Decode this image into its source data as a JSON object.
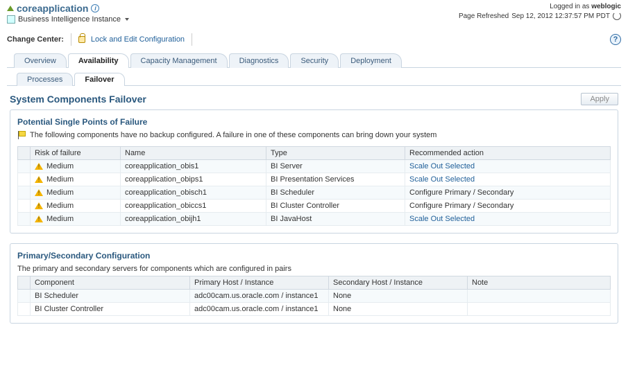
{
  "header": {
    "title": "coreapplication",
    "subtitle": "Business Intelligence Instance",
    "logged_in_prefix": "Logged in as ",
    "logged_in_user": "weblogic",
    "refresh_prefix": "Page Refreshed ",
    "refresh_time": "Sep 12, 2012 12:37:57 PM PDT"
  },
  "change_center": {
    "label": "Change Center:",
    "lock_link": "Lock and Edit Configuration"
  },
  "tabs": {
    "items": [
      "Overview",
      "Availability",
      "Capacity Management",
      "Diagnostics",
      "Security",
      "Deployment"
    ],
    "active_index": 1
  },
  "subtabs": {
    "items": [
      "Processes",
      "Failover"
    ],
    "active_index": 1
  },
  "section": {
    "title": "System Components Failover",
    "apply_label": "Apply"
  },
  "spof": {
    "heading": "Potential Single Points of Failure",
    "description": "The following components have no backup configured. A failure in one of these components can bring down your system",
    "columns": [
      "Risk of failure",
      "Name",
      "Type",
      "Recommended action"
    ],
    "col_widths": [
      "130px",
      "210px",
      "200px",
      "auto"
    ],
    "rows": [
      {
        "risk": "Medium",
        "name": "coreapplication_obis1",
        "type": "BI Server",
        "action": "Scale Out Selected",
        "action_link": true
      },
      {
        "risk": "Medium",
        "name": "coreapplication_obips1",
        "type": "BI Presentation Services",
        "action": "Scale Out Selected",
        "action_link": true
      },
      {
        "risk": "Medium",
        "name": "coreapplication_obisch1",
        "type": "BI Scheduler",
        "action": "Configure Primary / Secondary",
        "action_link": false
      },
      {
        "risk": "Medium",
        "name": "coreapplication_obiccs1",
        "type": "BI Cluster Controller",
        "action": "Configure Primary / Secondary",
        "action_link": false
      },
      {
        "risk": "Medium",
        "name": "coreapplication_obijh1",
        "type": "BI JavaHost",
        "action": "Scale Out Selected",
        "action_link": true
      }
    ]
  },
  "psc": {
    "heading": "Primary/Secondary Configuration",
    "description": "The primary and secondary servers for components which are configured in pairs",
    "columns": [
      "Component",
      "Primary Host / Instance",
      "Secondary Host / Instance",
      "Note"
    ],
    "col_widths": [
      "230px",
      "200px",
      "200px",
      "auto"
    ],
    "rows": [
      {
        "component": "BI Scheduler",
        "primary": "adc00cam.us.oracle.com / instance1",
        "secondary": "None",
        "note": ""
      },
      {
        "component": "BI Cluster Controller",
        "primary": "adc00cam.us.oracle.com / instance1",
        "secondary": "None",
        "note": ""
      }
    ]
  },
  "colors": {
    "heading": "#2a587e",
    "link": "#1f5f99",
    "border": "#c8d4e0",
    "header_bg": "#eef2f5"
  }
}
